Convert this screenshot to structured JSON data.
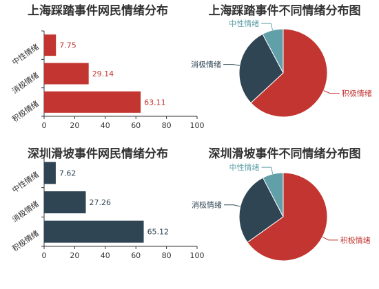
{
  "colors": {
    "positive": "#c23531",
    "negative": "#2f4554",
    "neutral": "#61a0a8",
    "title": "#333333",
    "axis": "#333333",
    "tick_text": "#333333"
  },
  "chart_data": [
    {
      "type": "bar",
      "orientation": "horizontal",
      "title": "上海踩踏事件网民情绪分布",
      "categories": [
        "积极情绪",
        "消极情绪",
        "中性情绪"
      ],
      "values": [
        63.11,
        29.14,
        7.75
      ],
      "xlim": [
        0,
        100
      ],
      "xticks": [
        "0",
        "20",
        "40",
        "60",
        "80",
        "100"
      ],
      "color": "#c23531",
      "grid": false
    },
    {
      "type": "pie",
      "title": "上海踩踏事件不同情绪分布图",
      "slices": [
        {
          "label": "积极情绪",
          "value": 63.11,
          "color": "#c23531"
        },
        {
          "label": "消极情绪",
          "value": 29.14,
          "color": "#2f4554"
        },
        {
          "label": "中性情绪",
          "value": 7.75,
          "color": "#61a0a8"
        }
      ]
    },
    {
      "type": "bar",
      "orientation": "horizontal",
      "title": "深圳滑坡事件网民情绪分布",
      "categories": [
        "积极情绪",
        "消极情绪",
        "中性情绪"
      ],
      "values": [
        65.12,
        27.26,
        7.62
      ],
      "xlim": [
        0,
        100
      ],
      "xticks": [
        "0",
        "20",
        "40",
        "60",
        "80",
        "100"
      ],
      "color": "#2f4554",
      "grid": false
    },
    {
      "type": "pie",
      "title": "深圳滑坡事件不同情绪分布图",
      "slices": [
        {
          "label": "积极情绪",
          "value": 65.12,
          "color": "#c23531"
        },
        {
          "label": "消极情绪",
          "value": 27.26,
          "color": "#2f4554"
        },
        {
          "label": "中性情绪",
          "value": 7.62,
          "color": "#61a0a8"
        }
      ]
    }
  ]
}
